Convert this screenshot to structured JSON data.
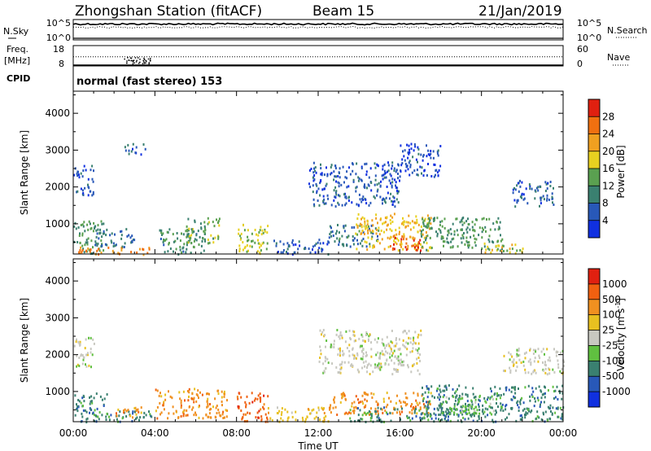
{
  "header": {
    "station": "Zhongshan Station (fitACF)",
    "beam": "Beam 15",
    "date": "21/Jan/2019"
  },
  "chart_data": [
    {
      "type": "line",
      "panel": "noise",
      "left_label": "N.Sky",
      "right_label": "N.Search",
      "left_ticks": [
        "10^5",
        "10^0"
      ],
      "right_ticks": [
        "10^5",
        "10^0"
      ],
      "series": [
        {
          "name": "N.Sky",
          "y_fraction": 0.78,
          "style": "solid"
        },
        {
          "name": "N.Search",
          "y_fraction": 0.62,
          "style": "dotted"
        }
      ]
    },
    {
      "type": "line",
      "panel": "frequency",
      "left_label_lines": [
        "Freq.",
        "[MHz]"
      ],
      "right_label": "Nave",
      "left_ticks": [
        "18",
        "8"
      ],
      "right_ticks": [
        "60",
        "0"
      ],
      "series": [
        {
          "name": "Freq",
          "value": 8,
          "style": "solid"
        },
        {
          "name": "Nave",
          "value": 34,
          "style": "dotted"
        }
      ],
      "cpid_label": "CPID",
      "cpid_text": "normal (fast stereo) 153"
    },
    {
      "type": "heatmap",
      "panel": "power",
      "ylabel": "Slant Range [km]",
      "yticks": [
        "4000",
        "3000",
        "2000",
        "1000"
      ],
      "ytick_values": [
        4000,
        3000,
        2000,
        1000
      ],
      "ylim": [
        180,
        4600
      ],
      "xlim_hours": [
        0,
        24
      ],
      "colorbar_label": "Power [dB]",
      "colorbar_ticks": [
        "28",
        "24",
        "20",
        "16",
        "12",
        "8",
        "4"
      ],
      "colorbar_tick_values": [
        28,
        24,
        20,
        16,
        12,
        8,
        4
      ],
      "colorbar_range": [
        0,
        32
      ],
      "colors": [
        "#1030e0",
        "#2858b8",
        "#3a8070",
        "#5aa050",
        "#e8d020",
        "#f0a020",
        "#f07010",
        "#e02010"
      ],
      "blobs": [
        {
          "t": [
            0.0,
            1.5
          ],
          "r": [
            200,
            1100
          ],
          "v": 12
        },
        {
          "t": [
            0.2,
            3.8
          ],
          "r": [
            190,
            400
          ],
          "v": 24
        },
        {
          "t": [
            1.0,
            3.0
          ],
          "r": [
            400,
            900
          ],
          "v": 8
        },
        {
          "t": [
            4.2,
            6.5
          ],
          "r": [
            200,
            900
          ],
          "v": 11
        },
        {
          "t": [
            5.5,
            7.2
          ],
          "r": [
            500,
            1200
          ],
          "v": 14
        },
        {
          "t": [
            8.0,
            9.5
          ],
          "r": [
            200,
            1000
          ],
          "v": 16
        },
        {
          "t": [
            9.8,
            12.5
          ],
          "r": [
            200,
            600
          ],
          "v": 6
        },
        {
          "t": [
            12.5,
            15.0
          ],
          "r": [
            400,
            1000
          ],
          "v": 9
        },
        {
          "t": [
            13.8,
            17.5
          ],
          "r": [
            300,
            1300
          ],
          "v": 20
        },
        {
          "t": [
            15.5,
            17.0
          ],
          "r": [
            300,
            700
          ],
          "v": 27
        },
        {
          "t": [
            17.0,
            21.0
          ],
          "r": [
            300,
            1200
          ],
          "v": 12
        },
        {
          "t": [
            20.0,
            22.0
          ],
          "r": [
            200,
            500
          ],
          "v": 18
        },
        {
          "t": [
            11.5,
            16.0
          ],
          "r": [
            1500,
            2700
          ],
          "v": 6
        },
        {
          "t": [
            16.0,
            18.0
          ],
          "r": [
            2300,
            3200
          ],
          "v": 5
        },
        {
          "t": [
            21.5,
            23.5
          ],
          "r": [
            1500,
            2200
          ],
          "v": 7
        },
        {
          "t": [
            0.0,
            1.0
          ],
          "r": [
            1800,
            2600
          ],
          "v": 5
        },
        {
          "t": [
            2.5,
            3.5
          ],
          "r": [
            2900,
            3200
          ],
          "v": 7
        }
      ]
    },
    {
      "type": "heatmap",
      "panel": "velocity",
      "xlabel": "Time UT",
      "xticks": [
        "00:00",
        "04:00",
        "08:00",
        "12:00",
        "16:00",
        "20:00",
        "00:00"
      ],
      "xtick_hours": [
        0,
        4,
        8,
        12,
        16,
        20,
        24
      ],
      "ylabel": "Slant Range [km]",
      "yticks": [
        "4000",
        "3000",
        "2000",
        "1000"
      ],
      "ytick_values": [
        4000,
        3000,
        2000,
        1000
      ],
      "ylim": [
        180,
        4600
      ],
      "colorbar_label": "Velocity [m s",
      "colorbar_label_sup": "-1",
      "colorbar_label_end": "]",
      "colorbar_ticks": [
        "1000",
        "500",
        "100",
        "25",
        "-25",
        "-100",
        "-500",
        "-1000"
      ],
      "colors": [
        "#1030e0",
        "#2858b8",
        "#3a8070",
        "#60c040",
        "#c8c8c0",
        "#e8c020",
        "#f09020",
        "#f06010",
        "#e02010"
      ],
      "blobs": [
        {
          "t": [
            0.0,
            1.8
          ],
          "r": [
            200,
            1000
          ],
          "c": 2
        },
        {
          "t": [
            1.5,
            3.8
          ],
          "r": [
            200,
            500
          ],
          "c": 2
        },
        {
          "t": [
            2.0,
            3.5
          ],
          "r": [
            300,
            600
          ],
          "c": 6
        },
        {
          "t": [
            4.0,
            7.5
          ],
          "r": [
            300,
            1100
          ],
          "c": 6
        },
        {
          "t": [
            8.0,
            9.5
          ],
          "r": [
            200,
            1000
          ],
          "c": 7
        },
        {
          "t": [
            9.5,
            12.5
          ],
          "r": [
            200,
            600
          ],
          "c": 5
        },
        {
          "t": [
            12.5,
            17.5
          ],
          "r": [
            400,
            1000
          ],
          "c": 6
        },
        {
          "t": [
            13.5,
            18.5
          ],
          "r": [
            200,
            600
          ],
          "c": 2
        },
        {
          "t": [
            17.0,
            24.0
          ],
          "r": [
            200,
            1200
          ],
          "c": 2
        },
        {
          "t": [
            18.0,
            21.0
          ],
          "r": [
            400,
            900
          ],
          "c": 3
        },
        {
          "t": [
            12.0,
            17.0
          ],
          "r": [
            1500,
            2700
          ],
          "c": 4
        },
        {
          "t": [
            21.0,
            24.0
          ],
          "r": [
            1500,
            2200
          ],
          "c": 4
        },
        {
          "t": [
            0.0,
            1.0
          ],
          "r": [
            1700,
            2500
          ],
          "c": 4
        }
      ]
    }
  ]
}
